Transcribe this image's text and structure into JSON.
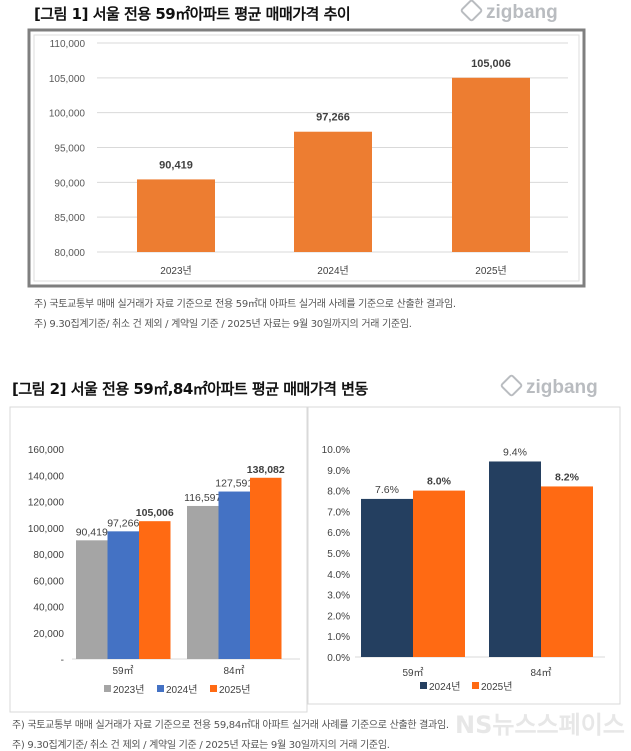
{
  "figure1": {
    "title": "[그림 1] 서울 전용 59㎡아파트 평균 매매가격 추이",
    "logo": "zigbang",
    "notes": [
      "주) 국토교통부 매매 실거래가 자료 기준으로 전용 59㎡대 아파트 실거래 사례를 기준으로 산출한 결과임.",
      "주) 9.30집계기준/ 취소 건 제외 / 계약일 기준 / 2025년 자료는 9월 30일까지의 거래 기준임."
    ]
  },
  "figure2": {
    "title": "[그림 2] 서울 전용 59㎡,84㎡아파트 평균 매매가격 변동",
    "logo": "zigbang",
    "notes": [
      "주) 국토교통부 매매 실거래가 자료 기준으로 전용 59,84㎡대 아파트 실거래 사례를 기준으로 산출한 결과임.",
      "주) 9.30집계기준/ 취소 건 제외 / 계약일 기준 / 2025년 자료는 9월 30일까지의 거래 기준임."
    ]
  },
  "watermark": "NS뉴스스페이스",
  "colors": {
    "orange1": "#ED7D31",
    "gray": "#A5A5A5",
    "blue": "#4472C4",
    "orange2": "#FF6A13",
    "navy": "#243F60"
  },
  "chart_data": [
    {
      "type": "bar",
      "categories": [
        "2023년",
        "2024년",
        "2025년"
      ],
      "values": [
        90419,
        97266,
        105006
      ],
      "labels": [
        "90,419",
        "97,266",
        "105,006"
      ],
      "ylim": [
        80000,
        110000
      ],
      "yticks": [
        "80,000",
        "85,000",
        "90,000",
        "95,000",
        "100,000",
        "105,000",
        "110,000"
      ],
      "grid": true
    },
    {
      "type": "bar",
      "categories": [
        "59㎡",
        "84㎡"
      ],
      "series": [
        {
          "name": "2023년",
          "values": [
            90419,
            116597
          ],
          "labels": [
            "90,419",
            "116,597"
          ]
        },
        {
          "name": "2024년",
          "values": [
            97266,
            127591
          ],
          "labels": [
            "97,266",
            "127,591"
          ]
        },
        {
          "name": "2025년",
          "values": [
            105006,
            138082
          ],
          "labels": [
            "105,006",
            "138,082"
          ]
        }
      ],
      "ylim": [
        0,
        160000
      ],
      "yticks": [
        "-",
        "20,000",
        "40,000",
        "60,000",
        "80,000",
        "100,000",
        "120,000",
        "140,000",
        "160,000"
      ],
      "legend": "bottom"
    },
    {
      "type": "bar",
      "categories": [
        "59㎡",
        "84㎡"
      ],
      "series": [
        {
          "name": "2024년",
          "values": [
            7.6,
            9.4
          ],
          "labels": [
            "7.6%",
            "9.4%"
          ]
        },
        {
          "name": "2025년",
          "values": [
            8.0,
            8.2
          ],
          "labels": [
            "8.0%",
            "8.2%"
          ]
        }
      ],
      "ylim": [
        0,
        10
      ],
      "yticks": [
        "0.0%",
        "1.0%",
        "2.0%",
        "3.0%",
        "4.0%",
        "5.0%",
        "6.0%",
        "7.0%",
        "8.0%",
        "9.0%",
        "10.0%"
      ],
      "legend": "bottom"
    }
  ]
}
